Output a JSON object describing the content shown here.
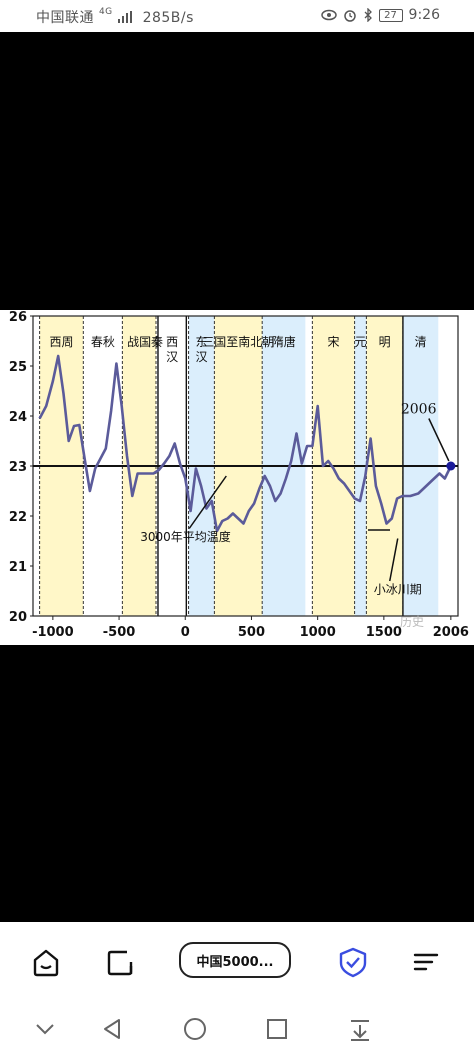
{
  "status_bar": {
    "carrier": "中国联通",
    "net_type": "4G",
    "net_speed": "285B/s",
    "battery": "27",
    "time": "9:26"
  },
  "browser": {
    "tab_title": "中国5000..."
  },
  "chart_data": {
    "type": "line",
    "title": "",
    "xlabel": "",
    "ylabel": "",
    "xlim": [
      -1150,
      2060
    ],
    "ylim": [
      20,
      26
    ],
    "x_ticks": [
      -1000,
      -500,
      0,
      500,
      1000,
      1500,
      2006
    ],
    "x_tick_labels": [
      "-1000",
      "-500",
      "0",
      "500",
      "1000",
      "1500",
      "2006"
    ],
    "y_ticks": [
      20,
      21,
      22,
      23,
      24,
      25,
      26
    ],
    "reference_line": {
      "y": 23,
      "label": "3000年平均温度"
    },
    "series": [
      {
        "color": "#5b5b9a",
        "points": [
          [
            -1100,
            23.95
          ],
          [
            -1050,
            24.2
          ],
          [
            -1000,
            24.7
          ],
          [
            -960,
            25.2
          ],
          [
            -920,
            24.45
          ],
          [
            -880,
            23.5
          ],
          [
            -840,
            23.8
          ],
          [
            -800,
            23.82
          ],
          [
            -760,
            23.15
          ],
          [
            -720,
            22.5
          ],
          [
            -680,
            22.95
          ],
          [
            -600,
            23.35
          ],
          [
            -560,
            24.1
          ],
          [
            -520,
            25.05
          ],
          [
            -480,
            24.2
          ],
          [
            -440,
            23.2
          ],
          [
            -400,
            22.4
          ],
          [
            -360,
            22.85
          ],
          [
            -320,
            22.85
          ],
          [
            -280,
            22.85
          ],
          [
            -240,
            22.85
          ],
          [
            -200,
            22.92
          ],
          [
            -160,
            23.05
          ],
          [
            -120,
            23.2
          ],
          [
            -80,
            23.45
          ],
          [
            -40,
            23.05
          ],
          [
            0,
            22.75
          ],
          [
            40,
            22.1
          ],
          [
            80,
            22.95
          ],
          [
            120,
            22.6
          ],
          [
            160,
            22.15
          ],
          [
            200,
            22.3
          ],
          [
            240,
            21.7
          ],
          [
            280,
            21.9
          ],
          [
            320,
            21.95
          ],
          [
            360,
            22.05
          ],
          [
            400,
            21.95
          ],
          [
            440,
            21.85
          ],
          [
            480,
            22.1
          ],
          [
            520,
            22.25
          ],
          [
            560,
            22.55
          ],
          [
            600,
            22.8
          ],
          [
            640,
            22.6
          ],
          [
            680,
            22.3
          ],
          [
            720,
            22.45
          ],
          [
            760,
            22.75
          ],
          [
            800,
            23.1
          ],
          [
            840,
            23.65
          ],
          [
            880,
            23.05
          ],
          [
            920,
            23.4
          ],
          [
            960,
            23.4
          ],
          [
            1000,
            24.2
          ],
          [
            1040,
            23.0
          ],
          [
            1080,
            23.1
          ],
          [
            1120,
            22.95
          ],
          [
            1160,
            22.75
          ],
          [
            1200,
            22.65
          ],
          [
            1240,
            22.5
          ],
          [
            1280,
            22.35
          ],
          [
            1320,
            22.3
          ],
          [
            1360,
            22.8
          ],
          [
            1400,
            23.55
          ],
          [
            1440,
            22.6
          ],
          [
            1480,
            22.25
          ],
          [
            1520,
            21.85
          ],
          [
            1560,
            21.95
          ],
          [
            1600,
            22.35
          ],
          [
            1640,
            22.4
          ],
          [
            1700,
            22.4
          ],
          [
            1760,
            22.45
          ],
          [
            1800,
            22.55
          ],
          [
            1860,
            22.7
          ],
          [
            1920,
            22.85
          ],
          [
            1960,
            22.75
          ],
          [
            2006,
            23.0
          ]
        ]
      }
    ],
    "eras": [
      {
        "label": "西周",
        "start": -1100,
        "end": -770,
        "color": "#fff7c8"
      },
      {
        "label": "春秋",
        "start": -770,
        "end": -475,
        "color": "#ffffff"
      },
      {
        "label": "战国",
        "start": -475,
        "end": -221,
        "color": "#fff7c8"
      },
      {
        "label": "秦",
        "start": -221,
        "end": -206,
        "color": "#ffffff"
      },
      {
        "label": "西汉",
        "start": -206,
        "end": 8,
        "color": "#ffffff"
      },
      {
        "label": "东汉",
        "start": 25,
        "end": 220,
        "color": "#dbeefc"
      },
      {
        "label": "三国至南北朝",
        "start": 220,
        "end": 581,
        "color": "#fff7c8"
      },
      {
        "label": "隋唐",
        "start": 581,
        "end": 907,
        "color": "#dbeefc"
      },
      {
        "label": "宋",
        "start": 960,
        "end": 1279,
        "color": "#fff7c8"
      },
      {
        "label": "元",
        "start": 1279,
        "end": 1368,
        "color": "#dbeefc"
      },
      {
        "label": "明",
        "start": 1368,
        "end": 1644,
        "color": "#fff7c8"
      },
      {
        "label": "清",
        "start": 1644,
        "end": 1911,
        "color": "#dbeefc"
      }
    ],
    "annotations": [
      {
        "text": "2006",
        "x": 2006,
        "y": 23.0
      },
      {
        "text": "小冰川期",
        "x": 1620,
        "y": 21.7
      },
      {
        "text": "3000年平均温度",
        "x": 310,
        "y": 22.8
      }
    ],
    "watermark": "历史"
  }
}
